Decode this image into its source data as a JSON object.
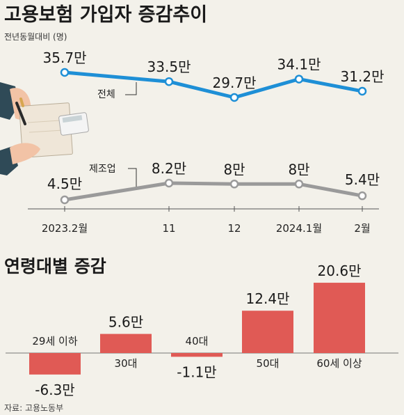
{
  "source": "자료: 고용노동부",
  "chart_data": [
    {
      "type": "line",
      "title": "고용보험 가입자 증감추이",
      "subtitle": "전년동월대비 (명)",
      "categories": [
        "2023.2월",
        "11",
        "12",
        "2024.1월",
        "2월"
      ],
      "series": [
        {
          "name": "전체",
          "values": [
            35.7,
            33.5,
            29.7,
            34.1,
            31.2
          ],
          "labels": [
            "35.7만",
            "33.5만",
            "29.7만",
            "34.1만",
            "31.2만"
          ],
          "color": "#1e8fd6"
        },
        {
          "name": "제조업",
          "values": [
            4.5,
            8.2,
            8,
            8,
            5.4
          ],
          "labels": [
            "4.5만",
            "8.2만",
            "8만",
            "8만",
            "5.4만"
          ],
          "color": "#9a9a9a"
        }
      ]
    },
    {
      "type": "bar",
      "title": "연령대별 증감",
      "categories": [
        "29세 이하",
        "30대",
        "40대",
        "50대",
        "60세 이상"
      ],
      "values": [
        -6.3,
        5.6,
        -1.1,
        12.4,
        20.6
      ],
      "labels": [
        "-6.3만",
        "5.6만",
        "-1.1만",
        "12.4만",
        "20.6만"
      ],
      "color": "#e05a55"
    }
  ]
}
